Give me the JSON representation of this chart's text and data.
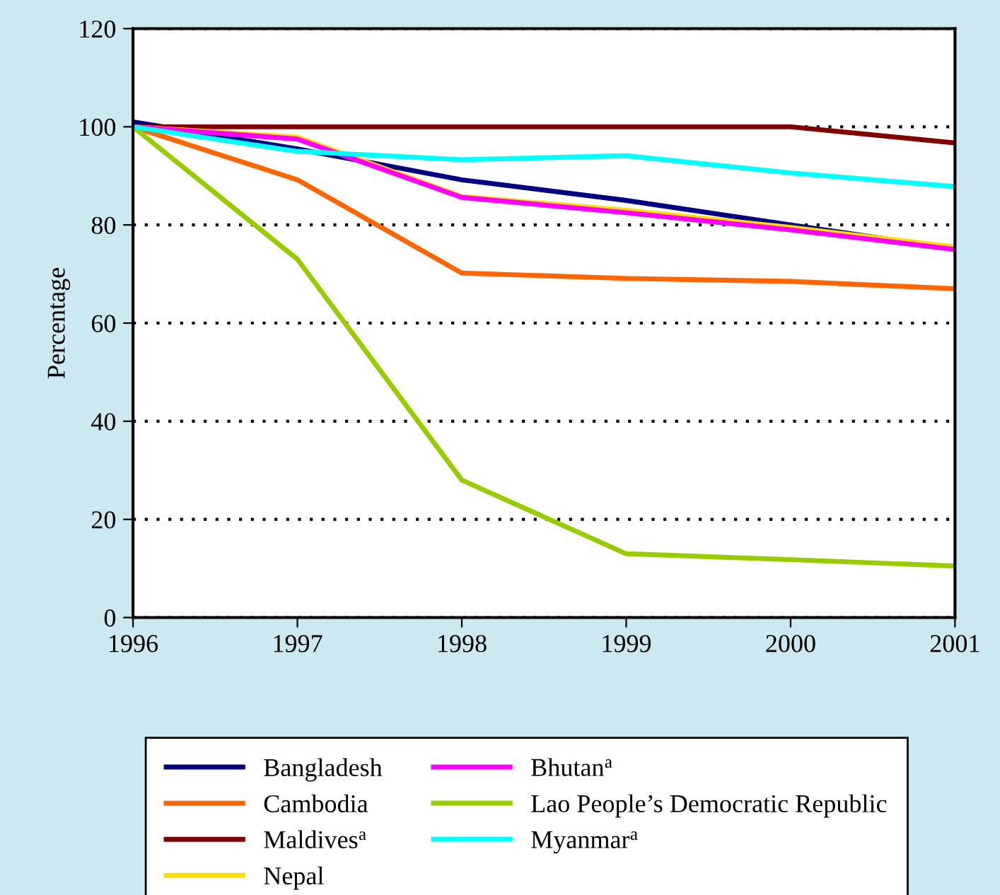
{
  "chart_data": {
    "type": "line",
    "ylabel": "Percentage",
    "x": [
      1996,
      1997,
      1998,
      1999,
      2000,
      2001
    ],
    "xlim": [
      1996,
      2001
    ],
    "xticks": [
      1996,
      1997,
      1998,
      1999,
      2000,
      2001
    ],
    "ylim": [
      0,
      120
    ],
    "yticks": [
      0,
      20,
      40,
      60,
      80,
      100,
      120
    ],
    "grid": "y",
    "legend": "bottom",
    "line_style": "solid",
    "marker": "none",
    "series": [
      {
        "name": "Bangladesh",
        "color": "#000080",
        "values": [
          101,
          95.5,
          89.2,
          85,
          80,
          75.1
        ]
      },
      {
        "name": "Cambodia",
        "color": "#ff6600",
        "values": [
          100,
          89.2,
          70.2,
          69.1,
          68.5,
          67
        ]
      },
      {
        "name": "Maldives$^{a}$",
        "color": "#800000",
        "values": [
          100,
          100,
          100,
          100,
          100,
          96.7
        ]
      },
      {
        "name": "Nepal",
        "color": "#ffdd00",
        "values": [
          100,
          97.9,
          85.8,
          83,
          79.5,
          75.5
        ]
      },
      {
        "name": "Bhutan$^{a}$",
        "color": "#ff00ff",
        "values": [
          100,
          97.5,
          85.6,
          82.5,
          79,
          75
        ]
      },
      {
        "name": "Lao People’s Democratic Republic",
        "color": "#99cc00",
        "values": [
          100,
          73,
          28,
          13,
          11.8,
          10.5
        ]
      },
      {
        "name": "Myanmar$^{a}$",
        "color": "#00ffff",
        "values": [
          100,
          95,
          93.3,
          94.1,
          90.6,
          87.8
        ]
      }
    ]
  }
}
